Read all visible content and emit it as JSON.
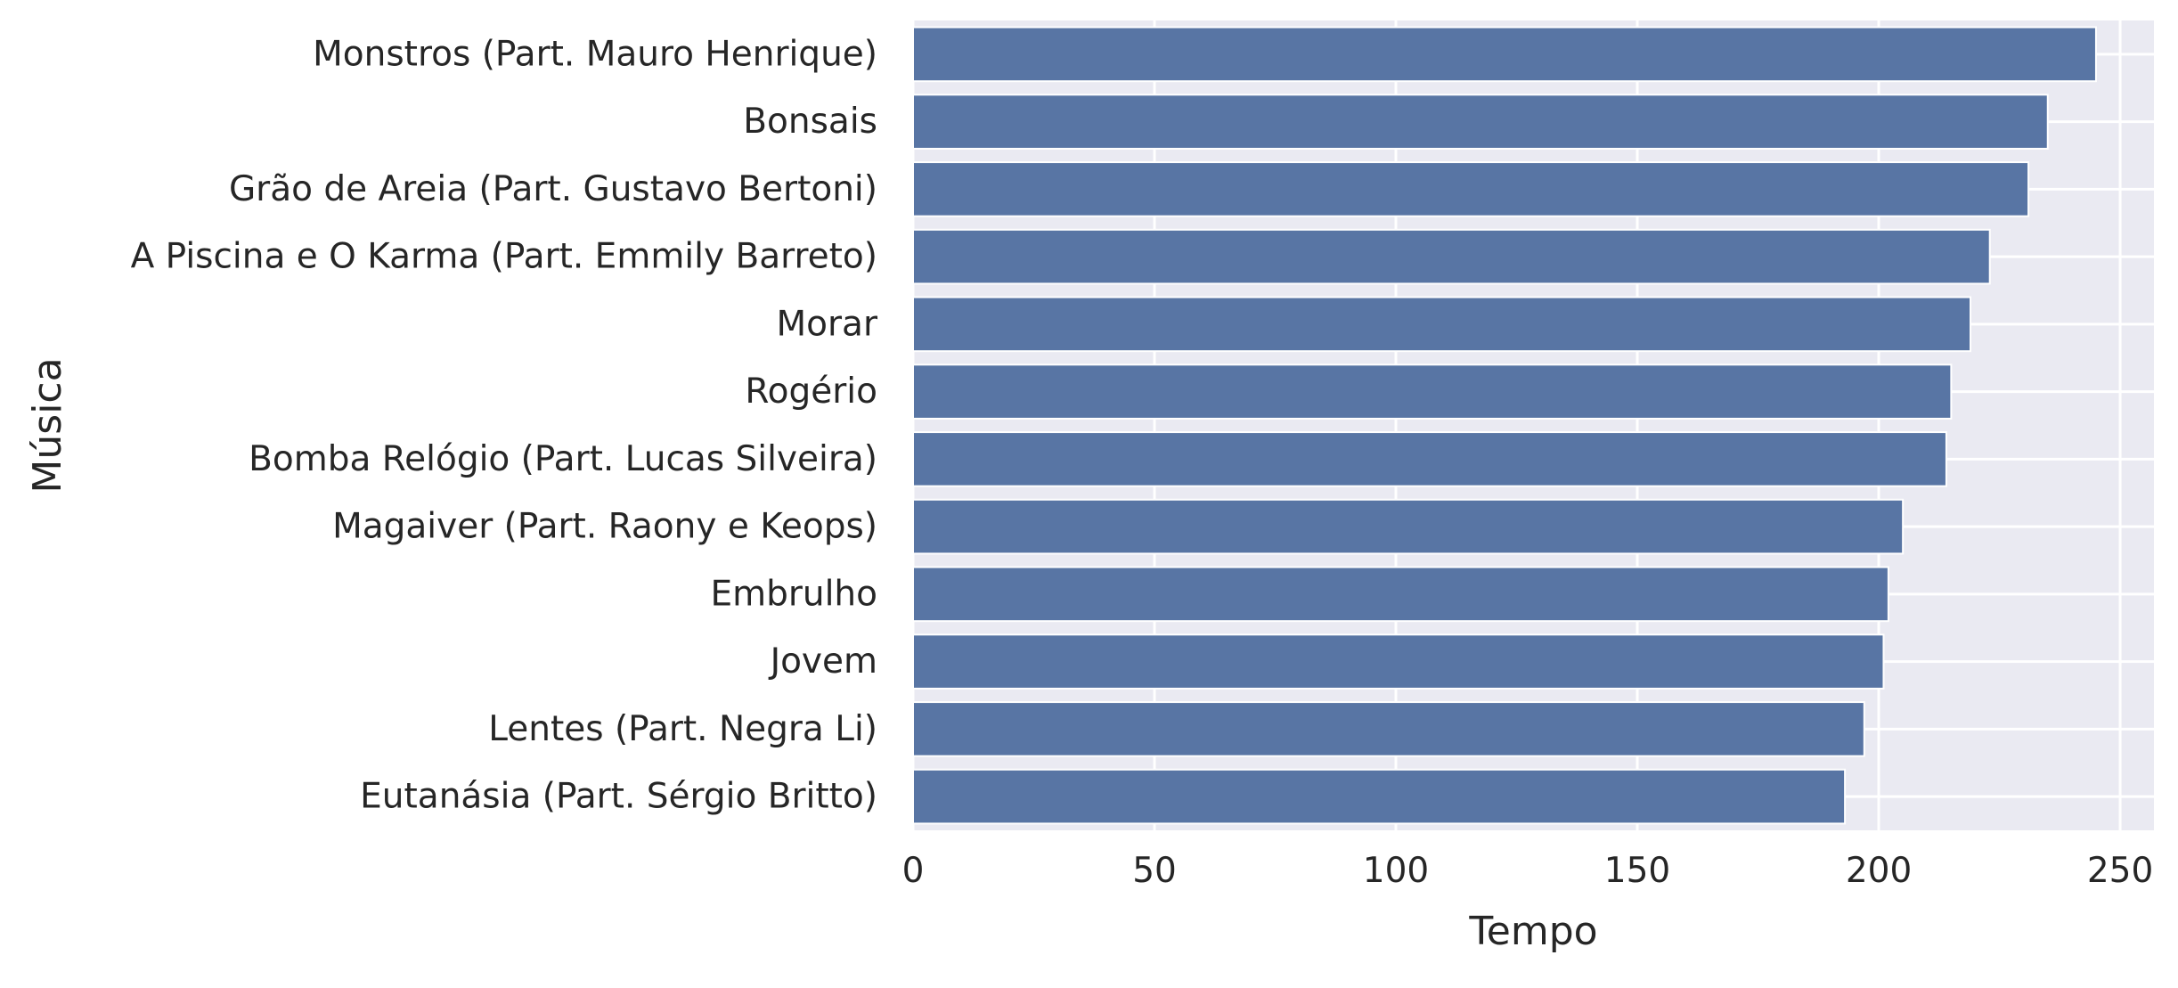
{
  "chart_data": {
    "type": "bar",
    "orientation": "horizontal",
    "categories": [
      "Monstros (Part. Mauro Henrique)",
      "Bonsais",
      "Grão de Areia (Part. Gustavo Bertoni)",
      "A Piscina e O Karma (Part. Emmily Barreto)",
      "Morar",
      "Rogério",
      "Bomba Relógio (Part. Lucas Silveira)",
      "Magaiver (Part. Raony e Keops)",
      "Embrulho",
      "Jovem",
      "Lentes (Part. Negra Li)",
      "Eutanásia (Part. Sérgio Britto)"
    ],
    "values": [
      245,
      235,
      231,
      223,
      219,
      215,
      214,
      205,
      202,
      201,
      197,
      193
    ],
    "xlabel": "Tempo",
    "ylabel": "Música",
    "xlim": [
      0,
      257
    ],
    "xticks": [
      0,
      50,
      100,
      150,
      200,
      250
    ],
    "grid": true,
    "bar_color": "#5875a4",
    "background_color": "#eaeaf2",
    "grid_color": "#ffffff"
  }
}
